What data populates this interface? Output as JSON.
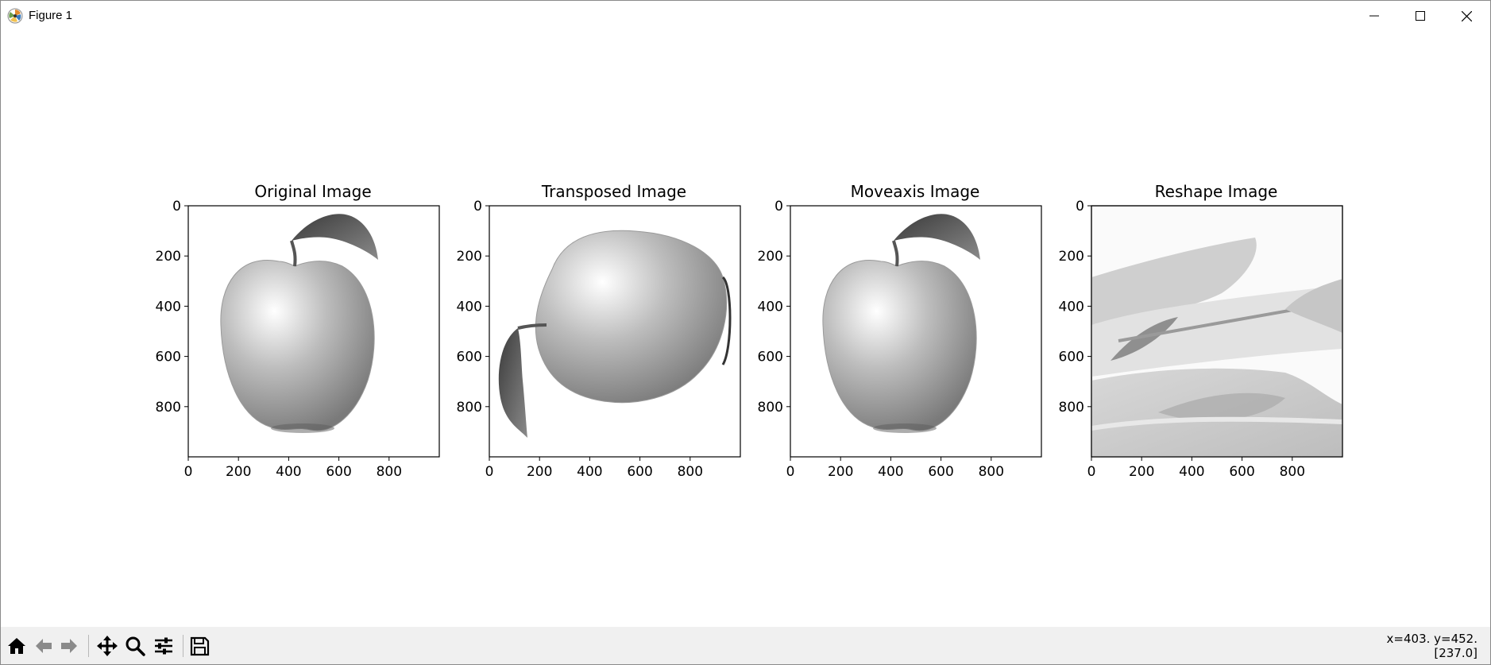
{
  "window": {
    "title": "Figure 1",
    "icons": [
      "matplotlib-logo-icon",
      "minimize-icon",
      "maximize-icon",
      "close-icon"
    ]
  },
  "panels": [
    {
      "title": "Original Image",
      "image": "apple with stem and leaf at top-right",
      "x_ticks": [
        "0",
        "200",
        "400",
        "600",
        "800"
      ],
      "y_ticks": [
        "0",
        "200",
        "400",
        "600",
        "800"
      ]
    },
    {
      "title": "Transposed Image",
      "image": "apple rotated, leaf at bottom-left",
      "x_ticks": [
        "0",
        "200",
        "400",
        "600",
        "800"
      ],
      "y_ticks": [
        "0",
        "200",
        "400",
        "600",
        "800"
      ]
    },
    {
      "title": "Moveaxis Image",
      "image": "apple with stem and leaf at top-right",
      "x_ticks": [
        "0",
        "200",
        "400",
        "600",
        "800"
      ],
      "y_ticks": [
        "0",
        "200",
        "400",
        "600",
        "800"
      ]
    },
    {
      "title": "Reshape Image",
      "image": "scrambled grayscale texture",
      "x_ticks": [
        "0",
        "200",
        "400",
        "600",
        "800"
      ],
      "y_ticks": [
        "0",
        "200",
        "400",
        "600",
        "800"
      ]
    }
  ],
  "axis": {
    "xlim": [
      0,
      1000
    ],
    "ylim": [
      1000,
      0
    ],
    "tick_values": [
      0,
      200,
      400,
      600,
      800
    ]
  },
  "toolbar": {
    "buttons": [
      "home-icon",
      "back-icon",
      "forward-icon",
      "pan-icon",
      "zoom-icon",
      "configure-subplots-icon",
      "save-icon"
    ]
  },
  "status": {
    "line1": "x=403. y=452.",
    "line2": "[237.0]"
  }
}
